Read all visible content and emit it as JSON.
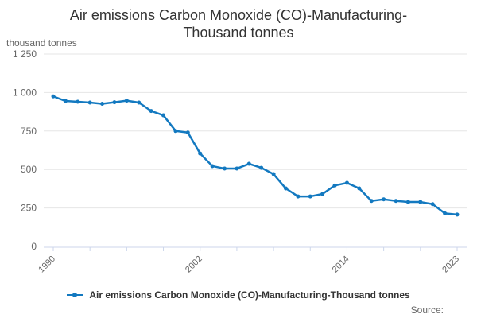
{
  "header": {
    "title_line1": "Air emissions Carbon Monoxide (CO)-Manufacturing-",
    "title_line2": "Thousand tonnes",
    "y_unit_label": "thousand tonnes"
  },
  "legend": {
    "label": "Air emissions Carbon Monoxide (CO)-Manufacturing-Thousand tonnes"
  },
  "footer": {
    "source_label": "Source:"
  },
  "colors": {
    "line": "#1379c0",
    "grid": "#e6e6e6",
    "axis": "#ccd6eb",
    "tick_text": "#666666",
    "title_text": "#333333",
    "legend_text": "#333333"
  },
  "chart_data": {
    "type": "line",
    "title": "Air emissions Carbon Monoxide (CO)-Manufacturing-Thousand tonnes",
    "name": "Air emissions Carbon Monoxide (CO)-Manufacturing-Thousand tonnes",
    "ylabel": "thousand tonnes",
    "xlabel": "",
    "x": [
      1990,
      1991,
      1992,
      1993,
      1994,
      1995,
      1996,
      1997,
      1998,
      1999,
      2000,
      2001,
      2002,
      2003,
      2004,
      2005,
      2006,
      2007,
      2008,
      2009,
      2010,
      2011,
      2012,
      2013,
      2014,
      2015,
      2016,
      2017,
      2018,
      2019,
      2020,
      2021,
      2022,
      2023
    ],
    "values": [
      975,
      945,
      940,
      935,
      927,
      937,
      947,
      935,
      880,
      852,
      750,
      740,
      604,
      522,
      506,
      506,
      537,
      511,
      470,
      377,
      325,
      325,
      341,
      396,
      413,
      377,
      296,
      306,
      296,
      289,
      289,
      275,
      215,
      207
    ],
    "ylim": [
      0,
      1250
    ],
    "y_ticks": [
      {
        "value": 0,
        "label": "0"
      },
      {
        "value": 250,
        "label": "250"
      },
      {
        "value": 500,
        "label": "500"
      },
      {
        "value": 750,
        "label": "750"
      },
      {
        "value": 1000,
        "label": "1 000"
      },
      {
        "value": 1250,
        "label": "1 250"
      }
    ],
    "x_ticks_every": 3,
    "x_tick_labels_shown": [
      "1990",
      "2002",
      "2014",
      "2023"
    ],
    "grid": "horizontal",
    "legend_position": "bottom",
    "marker": "circle"
  }
}
